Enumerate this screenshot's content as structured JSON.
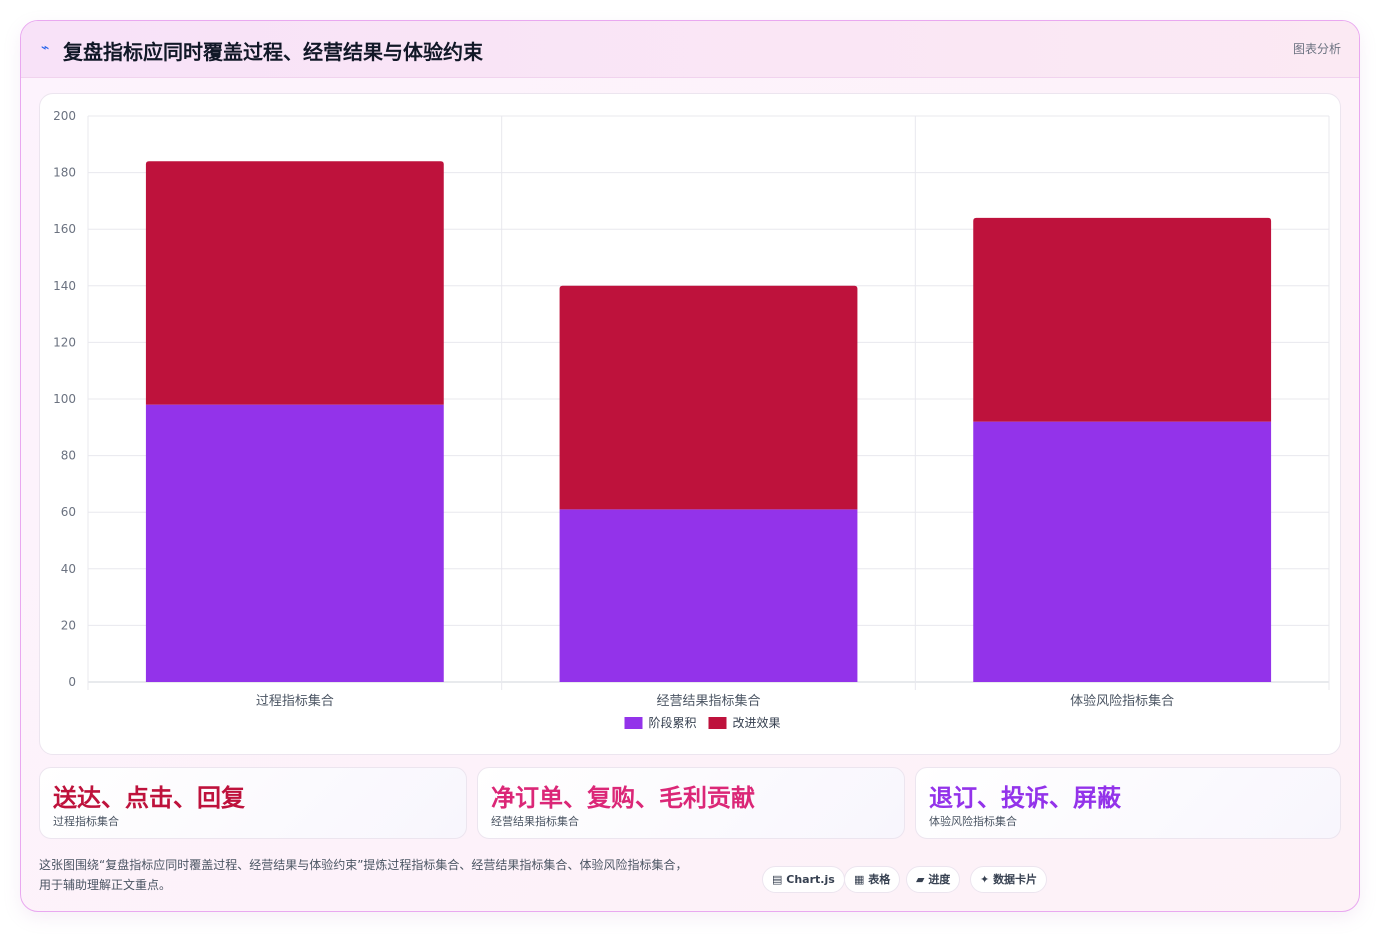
{
  "header": {
    "icon": "chart-line-icon",
    "title": "复盘指标应同时覆盖过程、经营结果与体验约束",
    "tag": "图表分析"
  },
  "chart_data": {
    "type": "bar",
    "stacked": true,
    "categories": [
      "过程指标集合",
      "经营结果指标集合",
      "体验风险指标集合"
    ],
    "series": [
      {
        "name": "阶段累积",
        "color": "#9333ea",
        "values": [
          98,
          61,
          92
        ]
      },
      {
        "name": "改进效果",
        "color": "#be123c",
        "values": [
          86,
          79,
          72
        ]
      }
    ],
    "ylim": [
      0,
      200
    ],
    "yticks": [
      0,
      20,
      40,
      60,
      80,
      100,
      120,
      140,
      160,
      180,
      200
    ],
    "grid": true,
    "legend": "bottom-center"
  },
  "metrics": [
    {
      "value": "送达、点击、回复",
      "label": "过程指标集合",
      "color": "#be123c"
    },
    {
      "value": "净订单、复购、毛利贡献",
      "label": "经营结果指标集合",
      "color": "#db2777"
    },
    {
      "value": "退订、投诉、屏蔽",
      "label": "体验风险指标集合",
      "color": "#9333ea"
    }
  ],
  "description": {
    "line1": "这张图围绕“复盘指标应同时覆盖过程、经营结果与体验约束”提炼过程指标集合、经营结果指标集合、体验风险指标集合，",
    "line2": "用于辅助理解正文重点。"
  },
  "chips": [
    {
      "icon": "chart-icon",
      "glyph": "▤",
      "label": "Chart.js"
    },
    {
      "icon": "table-icon",
      "glyph": "▦",
      "label": "表格"
    },
    {
      "icon": "progress-icon",
      "glyph": "▰",
      "label": "进度"
    },
    {
      "icon": "sparkle-icon",
      "glyph": "✦",
      "label": "数据卡片"
    }
  ]
}
